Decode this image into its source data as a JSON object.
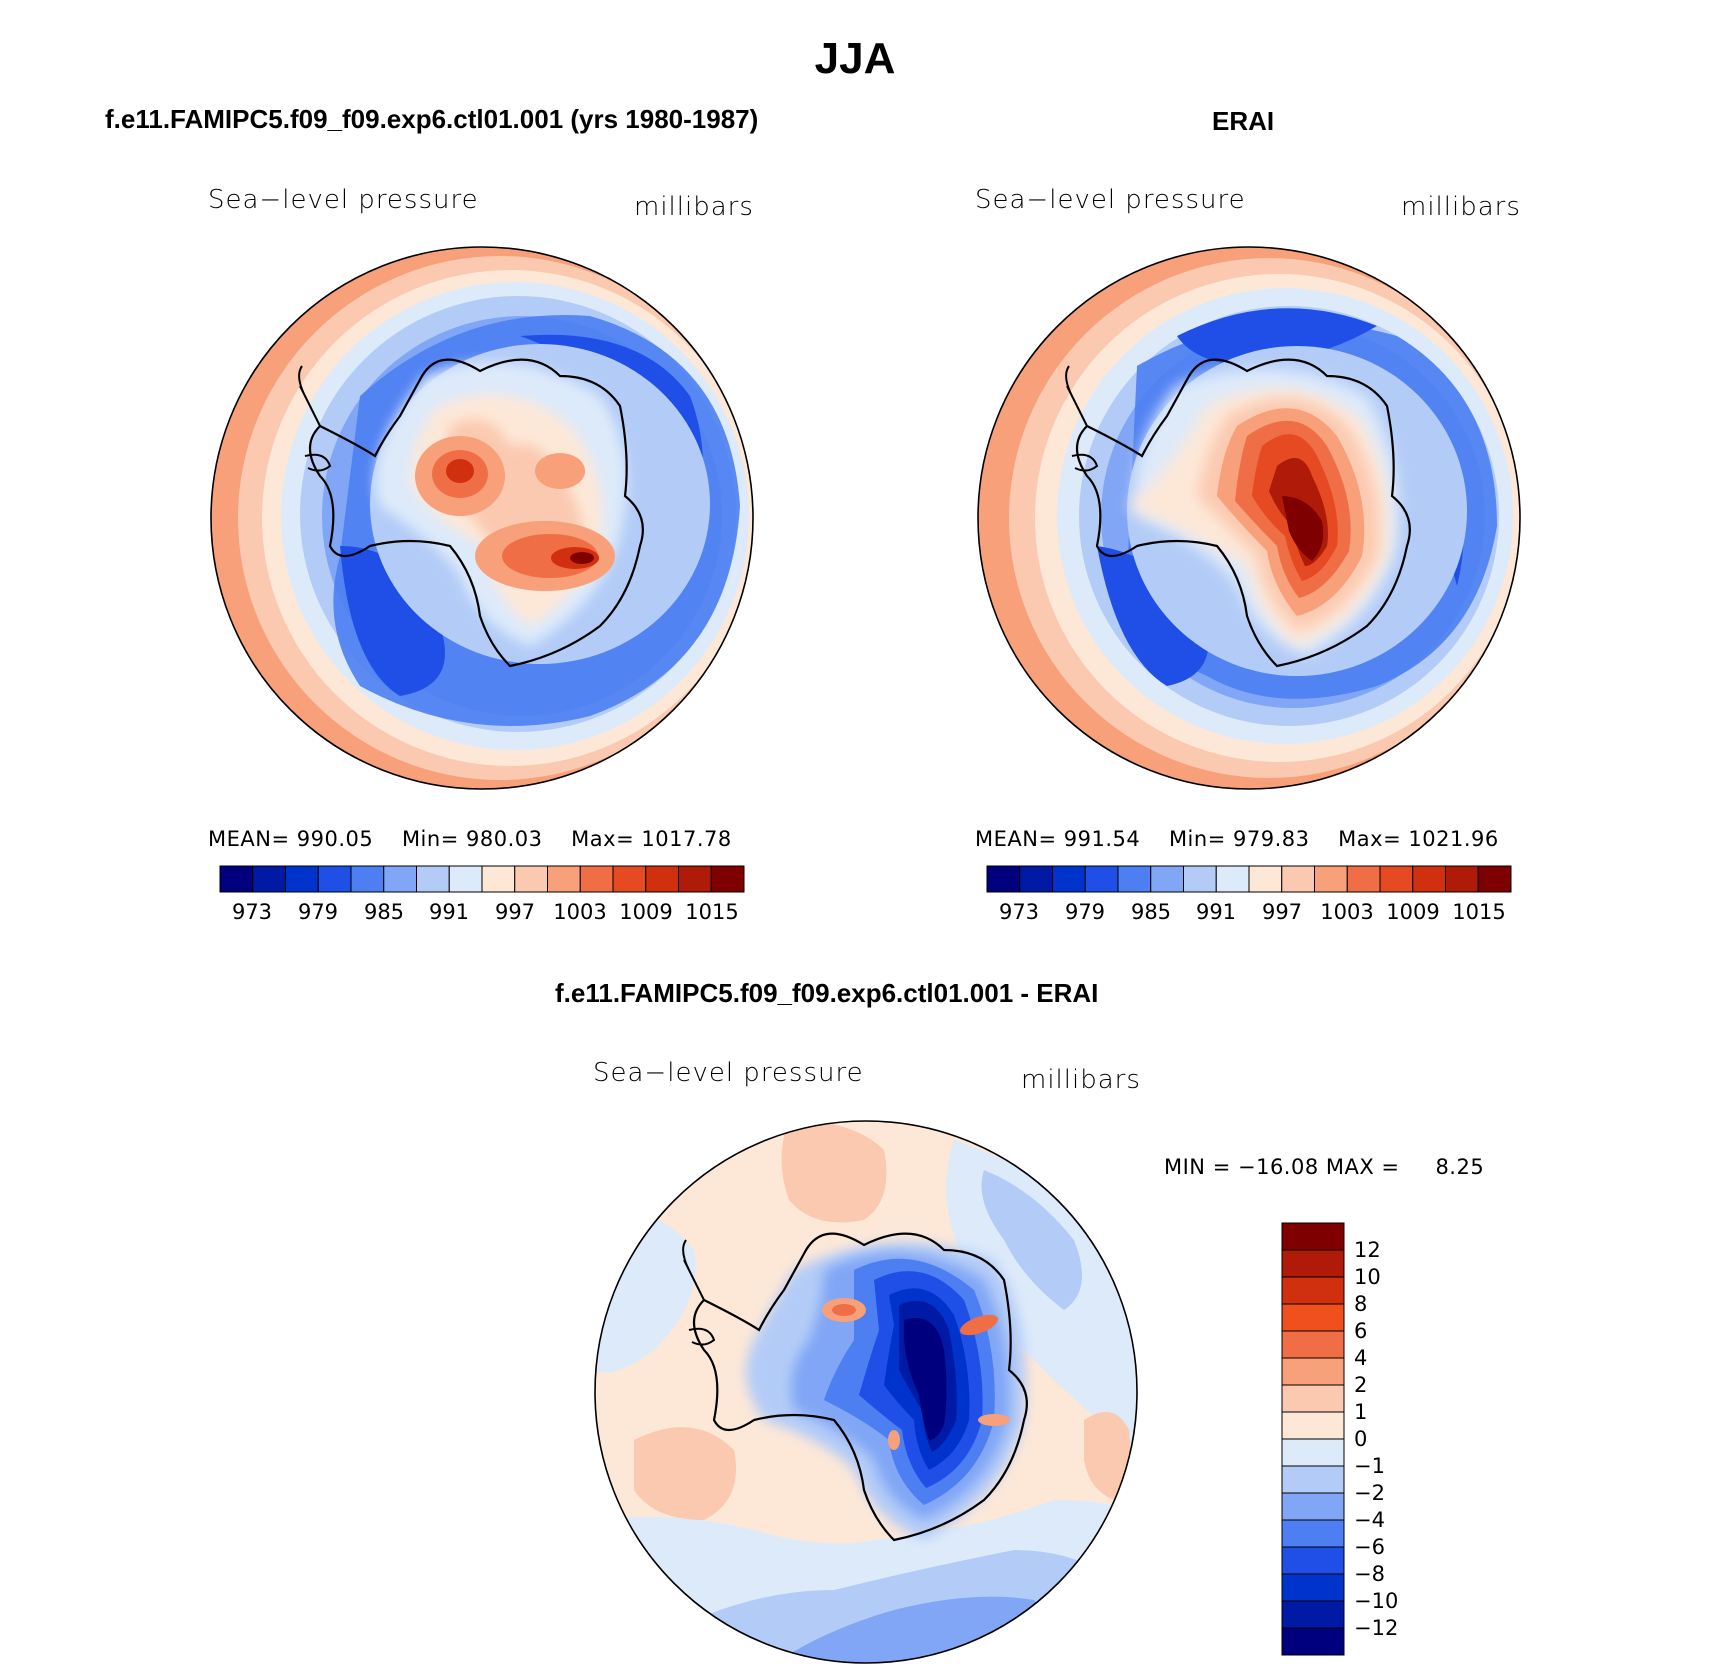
{
  "figure_title": "JJA",
  "colors": {
    "abs_scale": [
      "#00007f",
      "#001aa6",
      "#0033cc",
      "#1f4fe6",
      "#4d7ff2",
      "#80a6f5",
      "#b3ccf7",
      "#ddeafa",
      "#fde8d8",
      "#fbc9b0",
      "#f7a07a",
      "#f06e45",
      "#e64a22",
      "#d1300f",
      "#b01a08",
      "#7f0000"
    ],
    "diff_scale": [
      "#00007f",
      "#001aa6",
      "#0033cc",
      "#1f4fe6",
      "#4d7ff2",
      "#80a6f5",
      "#b3ccf7",
      "#ddeafa",
      "#fde8d8",
      "#fbc9b0",
      "#f7a07a",
      "#f06e45",
      "#f0501e",
      "#d1300f",
      "#b01a08",
      "#7f0000"
    ]
  },
  "panels": [
    {
      "id": "model",
      "title": "f.e11.FAMIPC5.f09_f09.exp6.ctl01.001 (yrs 1980-1987)",
      "variable": "Sea−level pressure",
      "units": "millibars",
      "stats": {
        "mean_label": "MEAN=",
        "mean": "990.05",
        "min_label": "Min=",
        "min": "980.03",
        "max_label": "Max=",
        "max": "1017.78"
      },
      "colorbar_ticks": [
        "973",
        "979",
        "985",
        "991",
        "997",
        "1003",
        "1009",
        "1015"
      ]
    },
    {
      "id": "obs",
      "title": "ERAI",
      "variable": "Sea−level pressure",
      "units": "millibars",
      "stats": {
        "mean_label": "MEAN=",
        "mean": "991.54",
        "min_label": "Min=",
        "min": "979.83",
        "max_label": "Max=",
        "max": "1021.96"
      },
      "colorbar_ticks": [
        "973",
        "979",
        "985",
        "991",
        "997",
        "1003",
        "1009",
        "1015"
      ]
    },
    {
      "id": "diff",
      "title": "f.e11.FAMIPC5.f09_f09.exp6.ctl01.001 - ERAI",
      "variable": "Sea−level pressure",
      "units": "millibars",
      "stats": {
        "min_label": "MIN =",
        "min": "−16.08",
        "max_label": "MAX =",
        "max": "8.25"
      },
      "colorbar_ticks": [
        "12",
        "10",
        "8",
        "6",
        "4",
        "2",
        "1",
        "0",
        "−1",
        "−2",
        "−4",
        "−6",
        "−8",
        "−10",
        "−12"
      ]
    }
  ]
}
